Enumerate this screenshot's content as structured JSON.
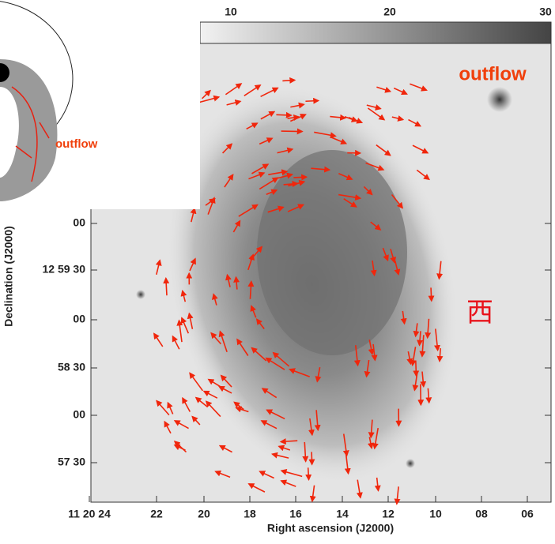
{
  "figure": {
    "colorbar": {
      "ticks": [
        "10",
        "20",
        "30"
      ]
    },
    "x_axis": {
      "label": "Right ascension (J2000)",
      "ticks": [
        "11 20 24",
        "22",
        "20",
        "18",
        "16",
        "14",
        "12",
        "10",
        "08",
        "06"
      ]
    },
    "y_axis": {
      "label": "Declination (J2000)",
      "ticks": [
        "00",
        "12 59 30",
        "00",
        "58 30",
        "00",
        "57 30"
      ]
    },
    "annotations": {
      "outflow_main": "outflow",
      "west": "西",
      "outflow_inset": "outflow"
    }
  }
}
